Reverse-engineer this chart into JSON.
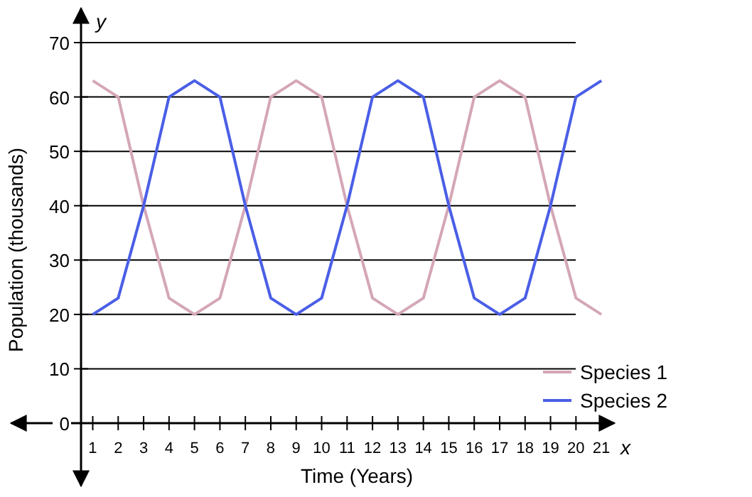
{
  "chart_data": {
    "type": "line",
    "xlabel": "Time (Years)",
    "ylabel": "Population (thousands)",
    "annotations": [
      "x",
      "y"
    ],
    "x": [
      1,
      2,
      3,
      4,
      5,
      6,
      7,
      8,
      9,
      10,
      11,
      12,
      13,
      14,
      15,
      16,
      17,
      18,
      19,
      20,
      21
    ],
    "series": [
      {
        "name": "Species 1",
        "color": "#d4a6b8",
        "values": [
          63,
          60,
          40,
          23,
          20,
          23,
          40,
          60,
          63,
          60,
          40,
          23,
          20,
          23,
          40,
          60,
          63,
          60,
          40,
          23,
          20
        ]
      },
      {
        "name": "Species 2",
        "color": "#4a5ee6",
        "values": [
          20,
          23,
          40,
          60,
          63,
          60,
          40,
          23,
          20,
          23,
          40,
          60,
          63,
          60,
          40,
          23,
          20,
          23,
          40,
          60,
          63
        ]
      }
    ],
    "xlim": [
      -2.2,
      21.5
    ],
    "ylim": [
      0,
      70
    ],
    "xticks": [
      1,
      2,
      3,
      4,
      5,
      6,
      7,
      8,
      9,
      10,
      11,
      12,
      13,
      14,
      15,
      16,
      17,
      18,
      19,
      20,
      21
    ],
    "yticks": [
      0,
      10,
      20,
      30,
      40,
      50,
      60,
      70
    ],
    "grid": "y",
    "legend": "right",
    "marker": "none",
    "line_style": "solid"
  }
}
